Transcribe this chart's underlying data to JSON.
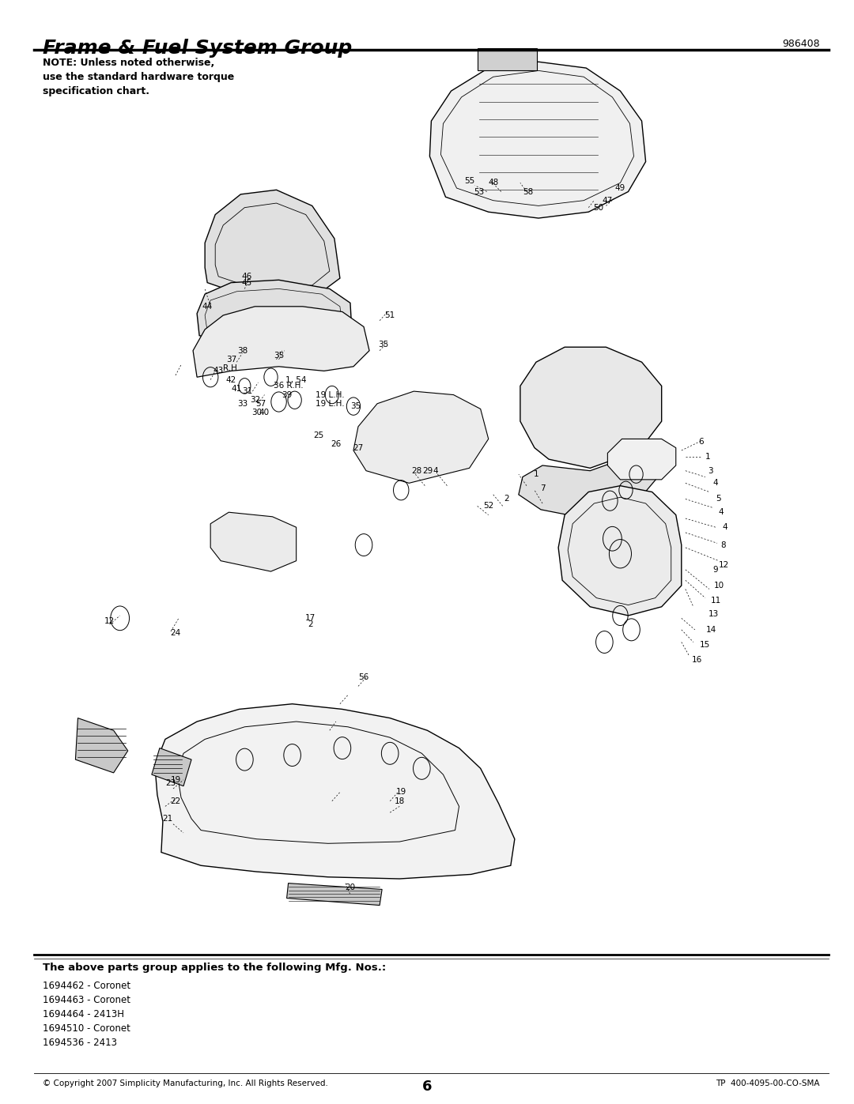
{
  "title": "Frame & Fuel System Group",
  "part_number": "986408",
  "note_text": "NOTE: Unless noted otherwise,\nuse the standard hardware torque\nspecification chart.",
  "bottom_bold_text": "The above parts group applies to the following Mfg. Nos.:",
  "mfg_nos": [
    "1694462 - Coronet",
    "1694463 - Coronet",
    "1694464 - 2413H",
    "1694510 - Coronet",
    "1694536 - 2413"
  ],
  "footer_left": "© Copyright 2007 Simplicity Manufacturing, Inc. All Rights Reserved.",
  "footer_center": "6",
  "footer_right": "TP  400-4095-00-CO-SMA",
  "bg_color": "#ffffff",
  "text_color": "#000000",
  "title_fontsize": 18,
  "note_fontsize": 9,
  "footer_fontsize": 8
}
